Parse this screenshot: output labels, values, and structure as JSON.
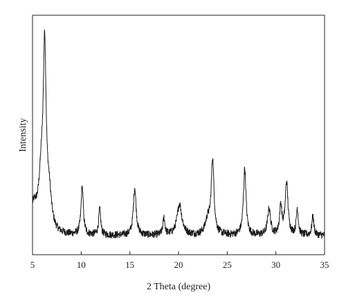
{
  "chart_data": {
    "type": "line",
    "xlabel": "2 Theta (degree)",
    "ylabel": "Intensity",
    "xlim": [
      5,
      35
    ],
    "ylim": [
      0,
      100
    ],
    "x_ticks": [
      5,
      10,
      15,
      20,
      25,
      30,
      35
    ],
    "y_ticks_labeled": false,
    "grid": false,
    "legend": "none",
    "line_color": "#1a1a1a",
    "baseline": 8,
    "noise": 1.6,
    "series": [
      {
        "peaks": [
          {
            "x": 5.1,
            "height": 8,
            "width": 0.35
          },
          {
            "x": 5.9,
            "height": 20,
            "width": 0.3
          },
          {
            "x": 6.25,
            "height": 72,
            "width": 0.18
          },
          {
            "x": 6.7,
            "height": 14,
            "width": 0.3
          },
          {
            "x": 10.1,
            "height": 20,
            "width": 0.14
          },
          {
            "x": 11.9,
            "height": 11,
            "width": 0.12
          },
          {
            "x": 15.5,
            "height": 20,
            "width": 0.17
          },
          {
            "x": 18.5,
            "height": 7,
            "width": 0.12
          },
          {
            "x": 20.1,
            "height": 13,
            "width": 0.3
          },
          {
            "x": 23.0,
            "height": 6,
            "width": 0.3
          },
          {
            "x": 23.5,
            "height": 31,
            "width": 0.17
          },
          {
            "x": 26.8,
            "height": 28,
            "width": 0.16
          },
          {
            "x": 29.3,
            "height": 11,
            "width": 0.18
          },
          {
            "x": 30.5,
            "height": 12,
            "width": 0.14
          },
          {
            "x": 31.1,
            "height": 22,
            "width": 0.17
          },
          {
            "x": 32.2,
            "height": 11,
            "width": 0.12
          },
          {
            "x": 33.8,
            "height": 8,
            "width": 0.12
          }
        ]
      }
    ]
  }
}
